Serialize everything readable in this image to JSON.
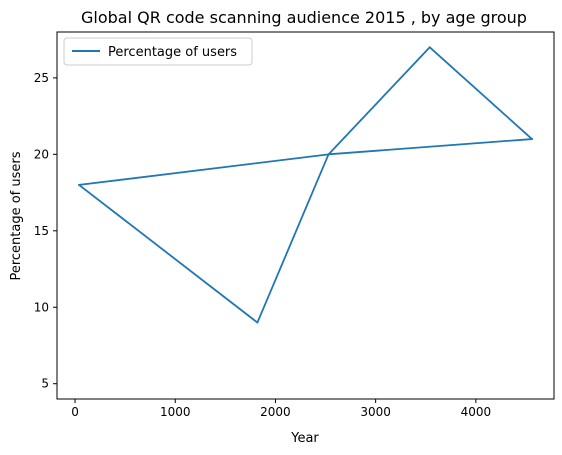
{
  "chart_data": {
    "type": "line",
    "title": "Global QR code scanning audience 2015 , by age group",
    "xlabel": "Year",
    "ylabel": "Percentage of users",
    "xlim": [
      -180,
      4780
    ],
    "ylim": [
      4.0,
      28.0
    ],
    "x_ticks": [
      0,
      1000,
      2000,
      3000,
      4000
    ],
    "y_ticks": [
      5,
      10,
      15,
      20,
      25
    ],
    "grid": false,
    "legend": {
      "position": "top-left"
    },
    "series": [
      {
        "name": "Percentage of users",
        "color": "#1f77b4",
        "x": [
          4560,
          2530,
          40,
          1820,
          2530,
          3540,
          4560
        ],
        "y": [
          21,
          20,
          18,
          9,
          20,
          27,
          21
        ]
      }
    ]
  }
}
